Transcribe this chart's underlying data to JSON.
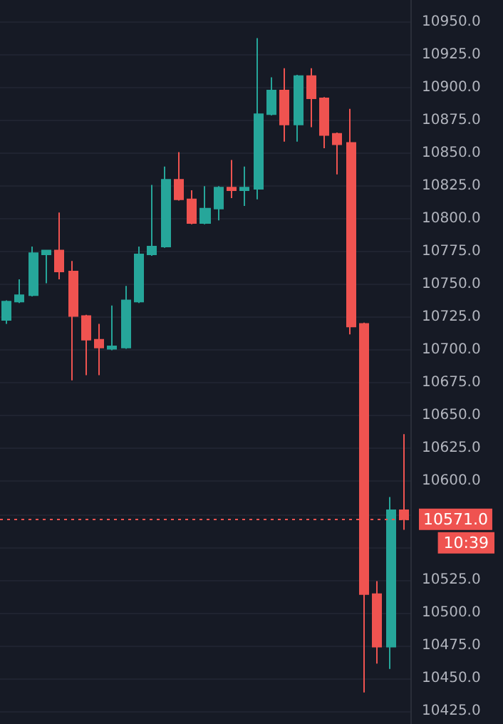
{
  "chart_data": {
    "type": "candlestick",
    "categories": [
      null,
      null,
      null,
      null,
      null,
      null,
      null,
      null,
      null,
      null,
      null,
      null,
      null,
      null,
      null,
      null,
      null,
      null,
      null,
      null,
      null,
      null,
      null,
      null,
      null,
      null,
      null,
      null,
      null,
      null,
      null
    ],
    "ohlc": [
      [
        10723,
        10738,
        10720,
        10737
      ],
      [
        10737,
        10754,
        10736,
        10742
      ],
      [
        10742,
        10779,
        10741,
        10774
      ],
      [
        10773,
        10776,
        10751,
        10776
      ],
      [
        10776,
        10805,
        10754,
        10760
      ],
      [
        10760,
        10768,
        10677,
        10726
      ],
      [
        10726,
        10727,
        10681,
        10708
      ],
      [
        10708,
        10720,
        10681,
        10702
      ],
      [
        10701,
        10734,
        10700,
        10703
      ],
      [
        10702,
        10749,
        10701,
        10738
      ],
      [
        10737,
        10779,
        10736,
        10773
      ],
      [
        10773,
        10826,
        10772,
        10779
      ],
      [
        10779,
        10840,
        10778,
        10830
      ],
      [
        10830,
        10851,
        10814,
        10815
      ],
      [
        10815,
        10822,
        10796,
        10797
      ],
      [
        10797,
        10825,
        10796,
        10808
      ],
      [
        10808,
        10825,
        10799,
        10824
      ],
      [
        10824,
        10845,
        10816,
        10822
      ],
      [
        10822,
        10840,
        10810,
        10824
      ],
      [
        10823,
        10938,
        10815,
        10880
      ],
      [
        10880,
        10908,
        10879,
        10898
      ],
      [
        10898,
        10915,
        10859,
        10872
      ],
      [
        10872,
        10910,
        10859,
        10909
      ],
      [
        10909,
        10915,
        10870,
        10892
      ],
      [
        10892,
        10893,
        10854,
        10864
      ],
      [
        10865,
        10866,
        10834,
        10857
      ],
      [
        10858,
        10884,
        10712,
        10718
      ],
      [
        10720,
        10721,
        10439,
        10514
      ],
      [
        10514,
        10524,
        10461,
        10474
      ],
      [
        10474,
        10588,
        10457,
        10578
      ],
      [
        10578,
        10636,
        10563,
        10571
      ]
    ],
    "colors": [
      "#26a69a",
      "#26a69a",
      "#26a69a",
      "#26a69a",
      "#ef5350",
      "#ef5350",
      "#ef5350",
      "#ef5350",
      "#26a69a",
      "#26a69a",
      "#26a69a",
      "#26a69a",
      "#26a69a",
      "#ef5350",
      "#ef5350",
      "#26a69a",
      "#26a69a",
      "#ef5350",
      "#26a69a",
      "#26a69a",
      "#26a69a",
      "#ef5350",
      "#26a69a",
      "#ef5350",
      "#ef5350",
      "#ef5350",
      "#ef5350",
      "#ef5350",
      "#ef5350",
      "#26a69a",
      "#ef5350"
    ],
    "ylim": [
      10415,
      10967
    ],
    "yticks": [
      {
        "value": 10425,
        "label": "10425.0"
      },
      {
        "value": 10450,
        "label": "10450.0"
      },
      {
        "value": 10475,
        "label": "10475.0"
      },
      {
        "value": 10500,
        "label": "10500.0"
      },
      {
        "value": 10525,
        "label": "10525.0"
      },
      {
        "value": 10550,
        "label": null
      },
      {
        "value": 10575,
        "label": null
      },
      {
        "value": 10600,
        "label": "10600.0"
      },
      {
        "value": 10625,
        "label": "10625.0"
      },
      {
        "value": 10650,
        "label": "10650.0"
      },
      {
        "value": 10675,
        "label": "10675.0"
      },
      {
        "value": 10700,
        "label": "10700.0"
      },
      {
        "value": 10725,
        "label": "10725.0"
      },
      {
        "value": 10750,
        "label": "10750.0"
      },
      {
        "value": 10775,
        "label": "10775.0"
      },
      {
        "value": 10800,
        "label": "10800.0"
      },
      {
        "value": 10825,
        "label": "10825.0"
      },
      {
        "value": 10850,
        "label": "10850.0"
      },
      {
        "value": 10875,
        "label": "10875.0"
      },
      {
        "value": 10900,
        "label": "10900.0"
      },
      {
        "value": 10925,
        "label": "10925.0"
      },
      {
        "value": 10950,
        "label": "10950.0"
      }
    ],
    "tick_labels": "y",
    "grid": "y",
    "ref_lines": [
      {
        "axis": "y",
        "value": 10571,
        "label": "10571.0",
        "color": "#ef5350",
        "line_style": "dotted"
      }
    ],
    "annotations": [
      "10:39"
    ]
  }
}
